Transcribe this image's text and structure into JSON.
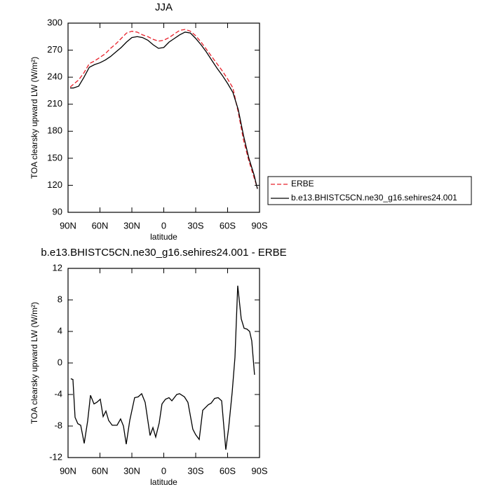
{
  "chart_data": [
    {
      "type": "line",
      "title": "JJA",
      "x_label": "latitude",
      "y_label": "TOA clearsky upward LW (W/m²)",
      "x": [
        88,
        85,
        80,
        75,
        70,
        65,
        60,
        55,
        50,
        45,
        40,
        35,
        30,
        25,
        20,
        15,
        10,
        5,
        0,
        -5,
        -10,
        -15,
        -20,
        -25,
        -30,
        -35,
        -40,
        -45,
        -50,
        -55,
        -60,
        -65,
        -70,
        -75,
        -80,
        -85,
        -88
      ],
      "series": [
        {
          "name": "ERBE",
          "color": "#e8202a",
          "dashed": true,
          "values": [
            229,
            232,
            237,
            245,
            255,
            258,
            262,
            266,
            272,
            277,
            283,
            289,
            291,
            290,
            287,
            285,
            282,
            280,
            281,
            284,
            288,
            292,
            293,
            291,
            286,
            279,
            271,
            263,
            255,
            247,
            238,
            228,
            201,
            170,
            147,
            128,
            117
          ]
        },
        {
          "name": "b.e13.BHISTC5CN.ne30_g16.sehires24.001",
          "color": "#000000",
          "dashed": false,
          "values": [
            228,
            228,
            230,
            240,
            251,
            254,
            256,
            259,
            263,
            268,
            273,
            279,
            284,
            285,
            284,
            281,
            276,
            272,
            273,
            279,
            283,
            287,
            290,
            289,
            283,
            276,
            268,
            259,
            250,
            242,
            233,
            223,
            204,
            175,
            150,
            131,
            116
          ]
        }
      ],
      "xlim": [
        90,
        -90
      ],
      "xticks": [
        {
          "value": 90,
          "label": "90N"
        },
        {
          "value": 60,
          "label": "60N"
        },
        {
          "value": 30,
          "label": "30N"
        },
        0,
        {
          "value": -30,
          "label": "30S"
        },
        {
          "value": -60,
          "label": "60S"
        },
        {
          "value": -90,
          "label": "90S"
        }
      ],
      "ylim": [
        90,
        300
      ],
      "yticks": [
        90,
        120,
        150,
        180,
        210,
        240,
        270,
        300
      ],
      "legend": "right"
    },
    {
      "type": "line",
      "title": "b.e13.BHISTC5CN.ne30_g16.sehires24.001 - ERBE",
      "x_label": "latitude",
      "y_label": "TOA clearsky upward LW (W/m²)",
      "x": [
        87.4,
        85.4,
        83.4,
        80.8,
        78.1,
        74.8,
        71.5,
        68.9,
        65.6,
        63.0,
        59.7,
        57.0,
        54.4,
        51.8,
        48.5,
        43.9,
        40.6,
        37.9,
        35.3,
        32.0,
        27.4,
        24.1,
        20.8,
        17.5,
        12.9,
        10.2,
        7.6,
        4.3,
        1.7,
        -1.6,
        -4.9,
        -7.6,
        -12.2,
        -14.8,
        -19.4,
        -22.7,
        -27.3,
        -30.0,
        -33.3,
        -36.6,
        -41.8,
        -44.5,
        -47.8,
        -51.1,
        -54.4,
        -58.3,
        -61.0,
        -64.3,
        -66.9,
        -69.5,
        -72.8,
        -75.5,
        -78.1,
        -80.7,
        -82.7,
        -85.3
      ],
      "values": [
        -2.0,
        -2.1,
        -6.9,
        -7.7,
        -7.9,
        -10.2,
        -7.3,
        -4.1,
        -5.2,
        -5.0,
        -4.6,
        -6.8,
        -6.1,
        -7.3,
        -7.9,
        -7.9,
        -7.1,
        -8.0,
        -10.3,
        -7.3,
        -4.4,
        -4.3,
        -3.9,
        -5.0,
        -9.2,
        -8.2,
        -9.4,
        -7.6,
        -5.2,
        -4.6,
        -4.4,
        -4.8,
        -4.0,
        -3.9,
        -4.3,
        -5.0,
        -8.4,
        -9.1,
        -9.7,
        -6.0,
        -5.3,
        -5.1,
        -4.5,
        -4.4,
        -4.8,
        -11.0,
        -8.2,
        -3.7,
        0.7,
        9.8,
        5.6,
        4.4,
        4.3,
        4.0,
        2.8,
        -1.5
      ],
      "color": "#000000",
      "xlim": [
        90,
        -90
      ],
      "xticks": [
        {
          "value": 90,
          "label": "90N"
        },
        {
          "value": 60,
          "label": "60N"
        },
        {
          "value": 30,
          "label": "30N"
        },
        0,
        {
          "value": -30,
          "label": "30S"
        },
        {
          "value": -60,
          "label": "60S"
        },
        {
          "value": -90,
          "label": "90S"
        }
      ],
      "ylim": [
        -12,
        12
      ],
      "yticks": [
        -12,
        -8,
        -4,
        0,
        4,
        8,
        12
      ]
    }
  ]
}
